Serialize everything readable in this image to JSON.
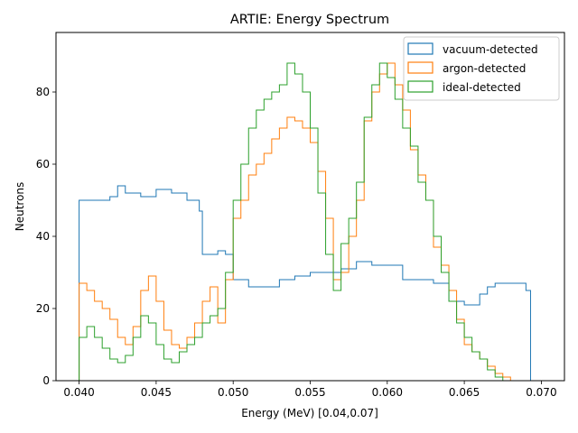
{
  "chart_data": {
    "type": "histogram",
    "title": "ARTIE: Energy Spectrum",
    "xlabel": "Energy (MeV) [0.04,0.07]",
    "ylabel": "Neutrons",
    "xlim": [
      0.0385,
      0.0715
    ],
    "ylim": [
      0,
      96.5
    ],
    "xticks": [
      "0.040",
      "0.045",
      "0.050",
      "0.055",
      "0.060",
      "0.065",
      "0.070"
    ],
    "yticks": [
      "0",
      "20",
      "40",
      "60",
      "80"
    ],
    "legend_position": "top-right",
    "grid": false,
    "series": [
      {
        "name": "vacuum-detected",
        "color": "#1f77b4",
        "points": [
          [
            0.04,
            0
          ],
          [
            0.04,
            50
          ],
          [
            0.041,
            50
          ],
          [
            0.042,
            51
          ],
          [
            0.0425,
            54
          ],
          [
            0.043,
            52
          ],
          [
            0.044,
            51
          ],
          [
            0.045,
            53
          ],
          [
            0.046,
            52
          ],
          [
            0.047,
            50
          ],
          [
            0.0478,
            47
          ],
          [
            0.048,
            35
          ],
          [
            0.049,
            36
          ],
          [
            0.0495,
            35
          ],
          [
            0.05,
            28
          ],
          [
            0.051,
            26
          ],
          [
            0.052,
            26
          ],
          [
            0.053,
            28
          ],
          [
            0.054,
            29
          ],
          [
            0.055,
            30
          ],
          [
            0.056,
            30
          ],
          [
            0.057,
            31
          ],
          [
            0.058,
            33
          ],
          [
            0.059,
            32
          ],
          [
            0.06,
            32
          ],
          [
            0.061,
            28
          ],
          [
            0.062,
            28
          ],
          [
            0.063,
            27
          ],
          [
            0.064,
            22
          ],
          [
            0.065,
            21
          ],
          [
            0.066,
            24
          ],
          [
            0.0665,
            26
          ],
          [
            0.067,
            27
          ],
          [
            0.068,
            27
          ],
          [
            0.069,
            25
          ],
          [
            0.0693,
            0
          ]
        ]
      },
      {
        "name": "argon-detected",
        "color": "#ff7f0e",
        "points": [
          [
            0.04,
            0
          ],
          [
            0.04,
            27
          ],
          [
            0.0405,
            25
          ],
          [
            0.041,
            22
          ],
          [
            0.0415,
            20
          ],
          [
            0.042,
            17
          ],
          [
            0.0425,
            12
          ],
          [
            0.043,
            10
          ],
          [
            0.0435,
            15
          ],
          [
            0.044,
            25
          ],
          [
            0.0445,
            29
          ],
          [
            0.045,
            22
          ],
          [
            0.0455,
            14
          ],
          [
            0.046,
            10
          ],
          [
            0.0465,
            9
          ],
          [
            0.047,
            12
          ],
          [
            0.0475,
            16
          ],
          [
            0.048,
            22
          ],
          [
            0.0485,
            26
          ],
          [
            0.049,
            16
          ],
          [
            0.0495,
            28
          ],
          [
            0.05,
            45
          ],
          [
            0.0505,
            50
          ],
          [
            0.051,
            57
          ],
          [
            0.0515,
            60
          ],
          [
            0.052,
            63
          ],
          [
            0.0525,
            67
          ],
          [
            0.053,
            70
          ],
          [
            0.0535,
            73
          ],
          [
            0.054,
            72
          ],
          [
            0.0545,
            70
          ],
          [
            0.055,
            66
          ],
          [
            0.0555,
            58
          ],
          [
            0.056,
            45
          ],
          [
            0.0565,
            28
          ],
          [
            0.057,
            30
          ],
          [
            0.0575,
            40
          ],
          [
            0.058,
            50
          ],
          [
            0.0585,
            72
          ],
          [
            0.059,
            80
          ],
          [
            0.0595,
            85
          ],
          [
            0.06,
            88
          ],
          [
            0.0605,
            82
          ],
          [
            0.061,
            75
          ],
          [
            0.0615,
            64
          ],
          [
            0.062,
            57
          ],
          [
            0.0625,
            50
          ],
          [
            0.063,
            37
          ],
          [
            0.0635,
            32
          ],
          [
            0.064,
            25
          ],
          [
            0.0645,
            17
          ],
          [
            0.065,
            10
          ],
          [
            0.0655,
            8
          ],
          [
            0.066,
            6
          ],
          [
            0.0665,
            4
          ],
          [
            0.067,
            2
          ],
          [
            0.0675,
            1
          ],
          [
            0.068,
            0
          ]
        ]
      },
      {
        "name": "ideal-detected",
        "color": "#2ca02c",
        "points": [
          [
            0.04,
            0
          ],
          [
            0.04,
            12
          ],
          [
            0.0405,
            15
          ],
          [
            0.041,
            12
          ],
          [
            0.0415,
            9
          ],
          [
            0.042,
            6
          ],
          [
            0.0425,
            5
          ],
          [
            0.043,
            7
          ],
          [
            0.0435,
            12
          ],
          [
            0.044,
            18
          ],
          [
            0.0445,
            16
          ],
          [
            0.045,
            10
          ],
          [
            0.0455,
            6
          ],
          [
            0.046,
            5
          ],
          [
            0.0465,
            8
          ],
          [
            0.047,
            10
          ],
          [
            0.0475,
            12
          ],
          [
            0.048,
            16
          ],
          [
            0.0485,
            18
          ],
          [
            0.049,
            20
          ],
          [
            0.0495,
            30
          ],
          [
            0.05,
            50
          ],
          [
            0.0505,
            60
          ],
          [
            0.051,
            70
          ],
          [
            0.0515,
            75
          ],
          [
            0.052,
            78
          ],
          [
            0.0525,
            80
          ],
          [
            0.053,
            82
          ],
          [
            0.0535,
            88
          ],
          [
            0.054,
            85
          ],
          [
            0.0545,
            80
          ],
          [
            0.055,
            70
          ],
          [
            0.0555,
            52
          ],
          [
            0.056,
            35
          ],
          [
            0.0565,
            25
          ],
          [
            0.057,
            38
          ],
          [
            0.0575,
            45
          ],
          [
            0.058,
            55
          ],
          [
            0.0585,
            73
          ],
          [
            0.059,
            82
          ],
          [
            0.0595,
            88
          ],
          [
            0.06,
            84
          ],
          [
            0.0605,
            78
          ],
          [
            0.061,
            70
          ],
          [
            0.0615,
            65
          ],
          [
            0.062,
            55
          ],
          [
            0.0625,
            50
          ],
          [
            0.063,
            40
          ],
          [
            0.0635,
            30
          ],
          [
            0.064,
            22
          ],
          [
            0.0645,
            16
          ],
          [
            0.065,
            12
          ],
          [
            0.0655,
            8
          ],
          [
            0.066,
            6
          ],
          [
            0.0665,
            3
          ],
          [
            0.067,
            1
          ],
          [
            0.0675,
            0
          ]
        ]
      }
    ]
  }
}
